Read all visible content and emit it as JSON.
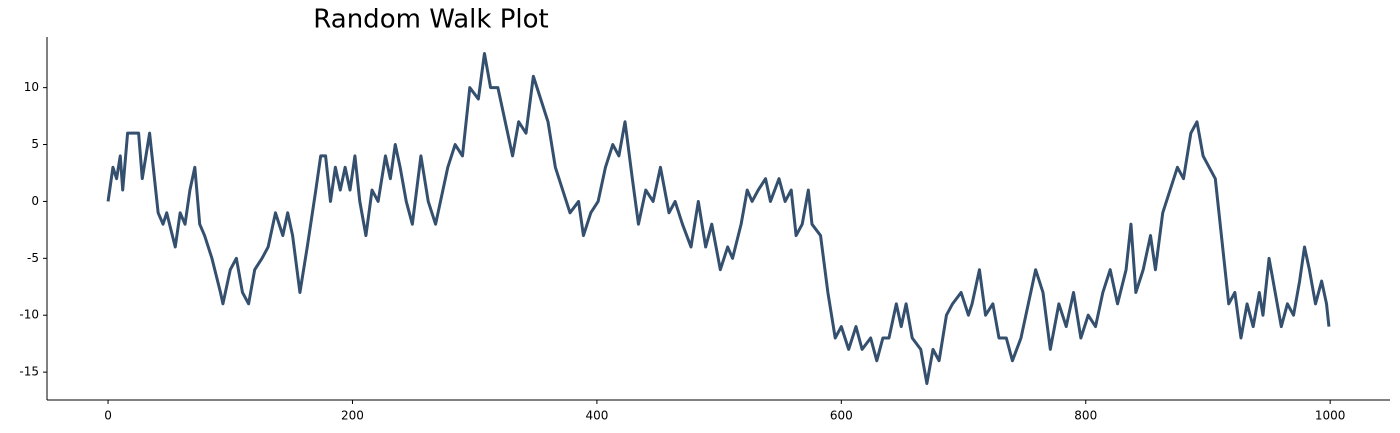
{
  "chart_data": {
    "type": "line",
    "title": "Random Walk Plot",
    "x": [
      0,
      4,
      7,
      10,
      12,
      16,
      25,
      28,
      34,
      41,
      45,
      48,
      55,
      59,
      63,
      67,
      71,
      75,
      79,
      85,
      92,
      94,
      100,
      105,
      110,
      115,
      120,
      126,
      131,
      137,
      143,
      147,
      151,
      157,
      163,
      170,
      174,
      178,
      182,
      186,
      190,
      194,
      198,
      202,
      206,
      211,
      216,
      221,
      227,
      231,
      235,
      239,
      244,
      249,
      256,
      262,
      268,
      274,
      278,
      284,
      290,
      296,
      303,
      308,
      313,
      319,
      325,
      331,
      336,
      342,
      348,
      354,
      360,
      366,
      372,
      378,
      385,
      389,
      395,
      401,
      407,
      413,
      418,
      423,
      429,
      434,
      440,
      446,
      452,
      459,
      464,
      470,
      477,
      483,
      489,
      494,
      501,
      507,
      511,
      518,
      523,
      527,
      532,
      538,
      542,
      549,
      554,
      559,
      563,
      568,
      573,
      576,
      583,
      589,
      595,
      600,
      606,
      612,
      617,
      624,
      629,
      634,
      639,
      645,
      649,
      653,
      658,
      665,
      670,
      675,
      680,
      686,
      691,
      698,
      704,
      707,
      713,
      718,
      724,
      729,
      735,
      740,
      747,
      753,
      759,
      765,
      771,
      778,
      784,
      790,
      796,
      802,
      808,
      814,
      820,
      826,
      833,
      837,
      841,
      847,
      853,
      857,
      863,
      869,
      875,
      880,
      886,
      891,
      896,
      901,
      906,
      912,
      917,
      922,
      927,
      932,
      937,
      942,
      945,
      950,
      955,
      960,
      965,
      970,
      975,
      979,
      983,
      988,
      993,
      997,
      999
    ],
    "series": [
      {
        "color": "#34506e",
        "values": [
          0,
          3,
          2,
          4,
          1,
          6,
          6,
          2,
          6,
          -1,
          -2,
          -1,
          -4,
          -1,
          -2,
          1,
          3,
          -2,
          -3,
          -5,
          -8,
          -9,
          -6,
          -5,
          -8,
          -9,
          -6,
          -5,
          -4,
          -1,
          -3,
          -1,
          -3,
          -8,
          -4,
          1,
          4,
          4,
          0,
          3,
          1,
          3,
          1,
          4,
          0,
          -3,
          1,
          0,
          4,
          2,
          5,
          3,
          0,
          -2,
          4,
          0,
          -2,
          1,
          3,
          5,
          4,
          10,
          9,
          13,
          10,
          10,
          7,
          4,
          7,
          6,
          11,
          9,
          7,
          3,
          1,
          -1,
          0,
          -3,
          -1,
          0,
          3,
          5,
          4,
          7,
          2,
          -2,
          1,
          0,
          3,
          -1,
          0,
          -2,
          -4,
          0,
          -4,
          -2,
          -6,
          -4,
          -5,
          -2,
          1,
          0,
          1,
          2,
          0,
          2,
          0,
          1,
          -3,
          -2,
          1,
          -2,
          -3,
          -8,
          -12,
          -11,
          -13,
          -11,
          -13,
          -12,
          -14,
          -12,
          -12,
          -9,
          -11,
          -9,
          -12,
          -13,
          -16,
          -13,
          -14,
          -10,
          -9,
          -8,
          -10,
          -9,
          -6,
          -10,
          -9,
          -12,
          -12,
          -14,
          -12,
          -9,
          -6,
          -8,
          -13,
          -9,
          -11,
          -8,
          -12,
          -10,
          -11,
          -8,
          -6,
          -9,
          -6,
          -2,
          -8,
          -6,
          -3,
          -6,
          -1,
          1,
          3,
          2,
          6,
          7,
          4,
          3,
          2,
          -4,
          -9,
          -8,
          -12,
          -9,
          -11,
          -8,
          -10,
          -5,
          -8,
          -11,
          -9,
          -10,
          -7,
          -4,
          -6,
          -9,
          -7,
          -9,
          -11
        ]
      }
    ],
    "xlim": [
      -49.95,
      1048.95
    ],
    "xticks": [
      0,
      200,
      400,
      600,
      800,
      1000
    ],
    "ylim": [
      -17.45,
      14.45
    ],
    "yticks": [
      -15,
      -10,
      -5,
      0,
      5,
      10
    ]
  }
}
